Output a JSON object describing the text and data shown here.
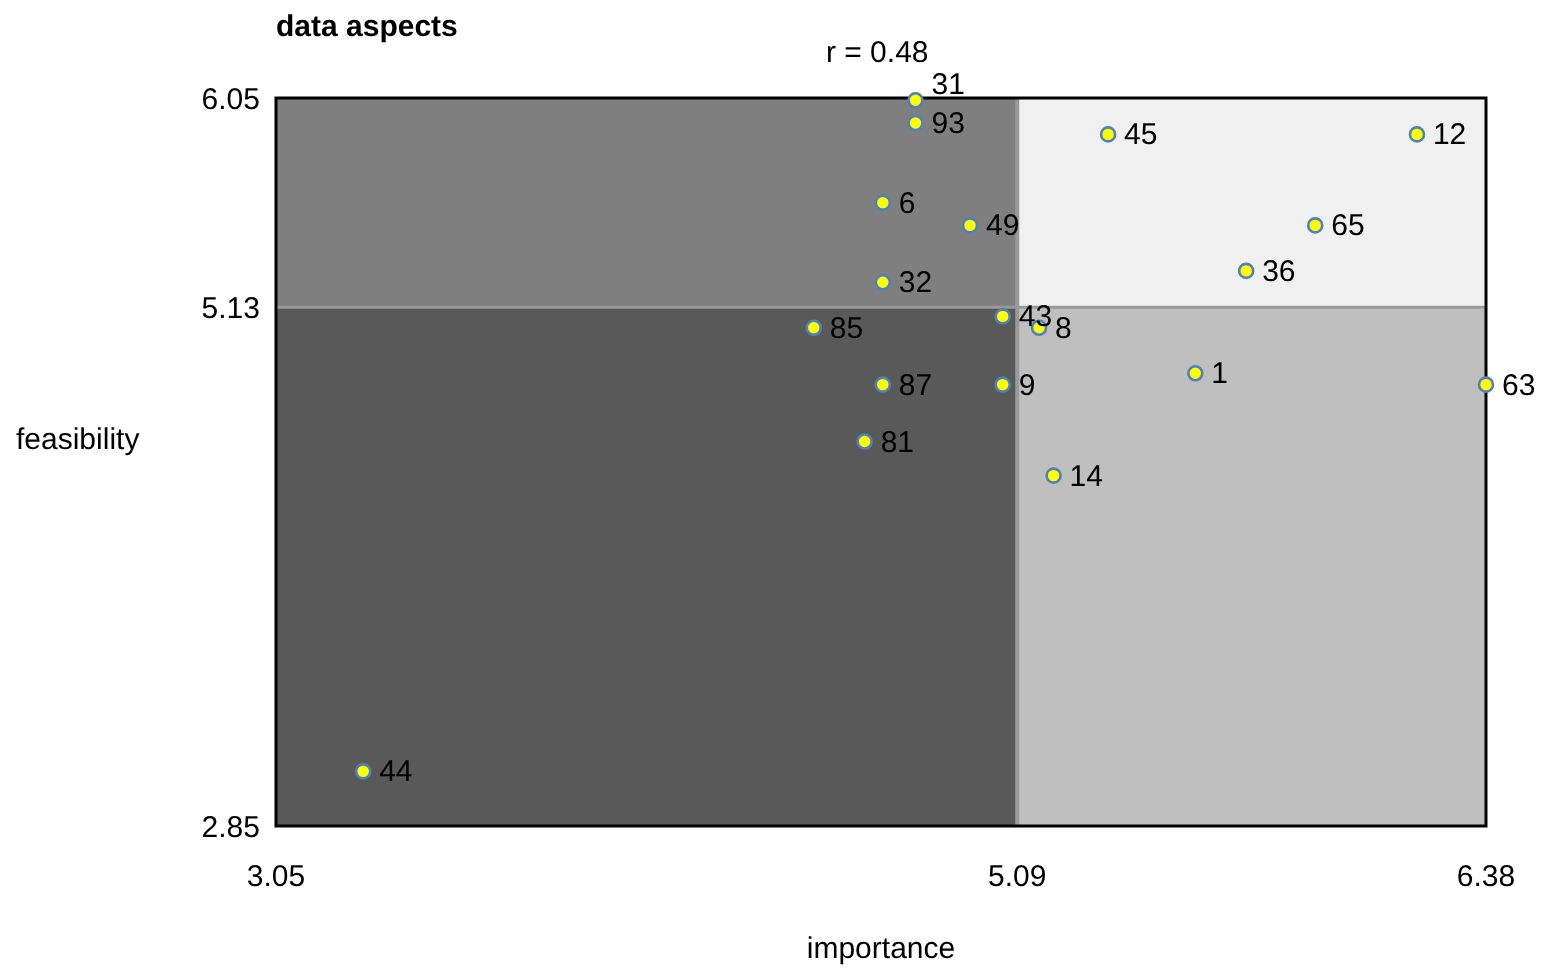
{
  "chart_data": {
    "type": "scatter",
    "title": "data aspects",
    "xlabel": "importance",
    "ylabel": "feasibility",
    "annotations": [
      "r = 0.48",
      {
        "text": "31",
        "x": 4.81,
        "y": 6.04
      },
      {
        "text": "93",
        "x": 4.81,
        "y": 5.94
      },
      {
        "text": "6",
        "x": 4.72,
        "y": 5.59
      },
      {
        "text": "49",
        "x": 4.96,
        "y": 5.49
      },
      {
        "text": "32",
        "x": 4.72,
        "y": 5.24
      },
      {
        "text": "85",
        "x": 4.53,
        "y": 5.04
      },
      {
        "text": "43",
        "x": 5.05,
        "y": 5.09
      },
      {
        "text": "8",
        "x": 5.15,
        "y": 5.04
      },
      {
        "text": "87",
        "x": 4.72,
        "y": 4.79
      },
      {
        "text": "9",
        "x": 5.05,
        "y": 4.79
      },
      {
        "text": "81",
        "x": 4.67,
        "y": 4.54
      },
      {
        "text": "14",
        "x": 5.19,
        "y": 4.39
      },
      {
        "text": "45",
        "x": 5.34,
        "y": 5.89
      },
      {
        "text": "12",
        "x": 6.19,
        "y": 5.89
      },
      {
        "text": "65",
        "x": 5.91,
        "y": 5.49
      },
      {
        "text": "36",
        "x": 5.72,
        "y": 5.29
      },
      {
        "text": "1",
        "x": 5.58,
        "y": 4.84
      },
      {
        "text": "63",
        "x": 6.38,
        "y": 4.79
      },
      {
        "text": "44",
        "x": 3.29,
        "y": 3.09
      }
    ],
    "xlim": [
      3.05,
      6.38
    ],
    "ylim": [
      2.85,
      6.05
    ],
    "xticks": [
      3.05,
      5.09,
      6.38
    ],
    "yticks": [
      2.85,
      5.13,
      6.05
    ],
    "ref_lines": [
      {
        "axis": "x",
        "value": 5.09,
        "color": "#9a9a9a"
      },
      {
        "axis": "y",
        "value": 5.13,
        "color": "#9a9a9a"
      }
    ],
    "bands": [
      {
        "axis": "y",
        "from": 5.13,
        "to": 6.05,
        "color": "#7f7f7f"
      },
      {
        "axis": "y",
        "from": 2.85,
        "to": 5.13,
        "color": "#595959"
      },
      {
        "axis": "x",
        "from": 5.09,
        "to": 6.38,
        "color": "#f0f0f0"
      },
      {
        "axis": "x",
        "from": 5.09,
        "to": 6.38,
        "color": "#bfbfbf"
      }
    ],
    "marker": "circle",
    "grid": false,
    "series": [
      {
        "color": "#ffff00",
        "x": [
          4.81,
          4.81,
          4.72,
          4.96,
          4.72,
          4.53,
          5.05,
          5.15,
          4.72,
          5.05,
          4.67,
          5.19,
          5.34,
          6.19,
          5.91,
          5.72,
          5.58,
          6.38,
          3.29
        ],
        "values": [
          6.04,
          5.94,
          5.59,
          5.49,
          5.24,
          5.04,
          5.09,
          5.04,
          4.79,
          4.79,
          4.54,
          4.39,
          5.89,
          5.89,
          5.49,
          5.29,
          4.84,
          4.79,
          3.09
        ]
      }
    ]
  }
}
